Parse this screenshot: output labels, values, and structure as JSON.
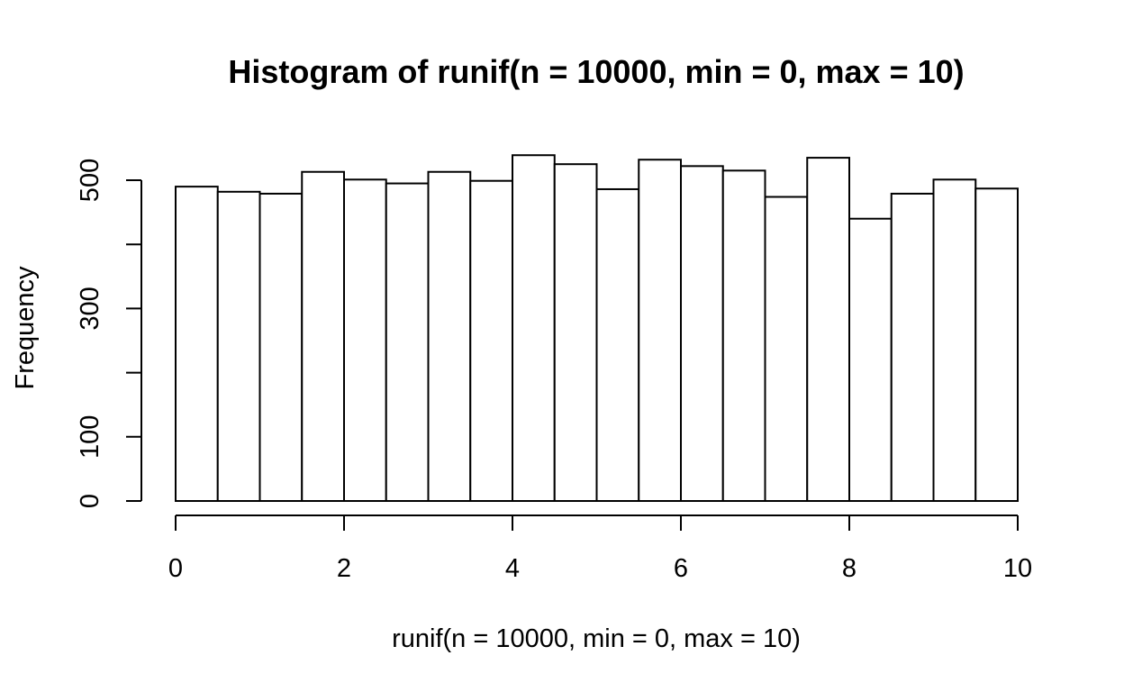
{
  "chart_data": {
    "type": "bar",
    "title": "Histogram of runif(n = 10000, min = 0, max = 10)",
    "xlabel": "runif(n = 10000, min = 0, max = 10)",
    "ylabel": "Frequency",
    "bin_edges": [
      0,
      0.5,
      1,
      1.5,
      2,
      2.5,
      3,
      3.5,
      4,
      4.5,
      5,
      5.5,
      6,
      6.5,
      7,
      7.5,
      8,
      8.5,
      9,
      9.5,
      10
    ],
    "values": [
      490,
      482,
      479,
      513,
      501,
      495,
      513,
      499,
      539,
      525,
      486,
      532,
      522,
      515,
      474,
      535,
      440,
      479,
      501,
      487
    ],
    "xlim": [
      0,
      10
    ],
    "ylim": [
      0,
      500
    ],
    "x_ticks": [
      0,
      2,
      4,
      6,
      8,
      10
    ],
    "x_tick_labels": [
      "0",
      "2",
      "4",
      "6",
      "8",
      "10"
    ],
    "y_ticks": [
      0,
      100,
      200,
      300,
      400,
      500
    ],
    "y_tick_labels": [
      "0",
      "100",
      "",
      "300",
      "",
      "500"
    ],
    "grid": false,
    "legend": "none",
    "bar_fill": "#ffffff",
    "bar_stroke": "#000000"
  }
}
